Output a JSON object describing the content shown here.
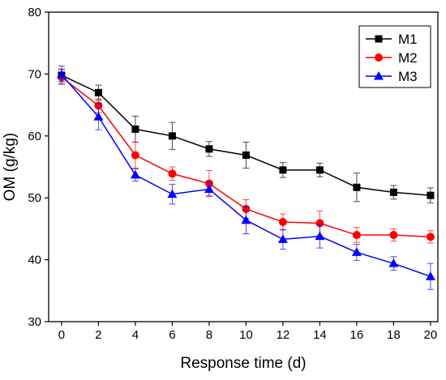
{
  "chart_data": {
    "type": "line",
    "title": "",
    "xlabel": "Response time (d)",
    "ylabel": "OM (g/kg)",
    "xlim": [
      -0.7,
      20.4
    ],
    "ylim": [
      30,
      80
    ],
    "xticks": [
      0,
      2,
      4,
      6,
      8,
      10,
      12,
      14,
      16,
      18,
      20
    ],
    "yticks": [
      30,
      40,
      50,
      60,
      70,
      80
    ],
    "legend_position": "top-right",
    "grid": false,
    "x": [
      0,
      2,
      4,
      6,
      8,
      10,
      12,
      14,
      16,
      18,
      20
    ],
    "series": [
      {
        "name": "M1",
        "color": "#000000",
        "marker": "square",
        "values": [
          69.8,
          67.0,
          61.1,
          60.0,
          57.9,
          56.9,
          54.5,
          54.5,
          51.7,
          50.9,
          50.4
        ],
        "errors": [
          1.0,
          1.2,
          2.1,
          2.2,
          1.2,
          2.1,
          1.2,
          1.1,
          2.3,
          1.1,
          1.2
        ]
      },
      {
        "name": "M2",
        "color": "#ff0000",
        "marker": "circle",
        "values": [
          69.5,
          64.9,
          56.9,
          53.9,
          52.3,
          48.2,
          46.1,
          45.9,
          44.0,
          44.0,
          43.7
        ],
        "errors": [
          1.2,
          1.1,
          2.1,
          1.1,
          2.1,
          1.5,
          1.3,
          2.0,
          1.2,
          1.0,
          1.0
        ]
      },
      {
        "name": "M3",
        "color": "#0000ff",
        "marker": "triangle",
        "values": [
          69.9,
          63.1,
          53.7,
          50.6,
          51.4,
          46.4,
          43.3,
          43.8,
          41.2,
          39.4,
          37.3
        ],
        "errors": [
          1.4,
          2.1,
          1.0,
          1.6,
          1.1,
          2.2,
          1.6,
          1.9,
          1.3,
          1.1,
          2.1
        ]
      }
    ]
  }
}
